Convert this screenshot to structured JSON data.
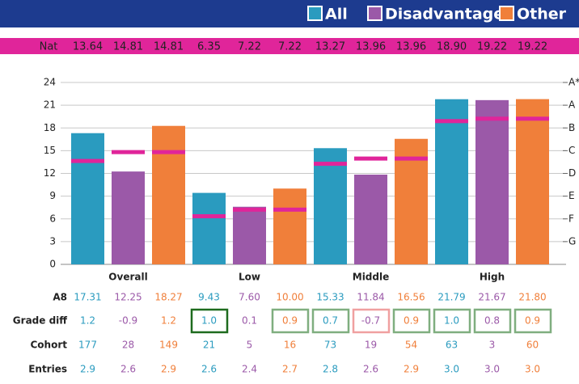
{
  "chart_data": {
    "type": "bar",
    "categories": [
      "Overall",
      "Low",
      "Middle",
      "High"
    ],
    "ylim": [
      0,
      24
    ],
    "yticks": [
      0,
      3,
      6,
      9,
      12,
      15,
      18,
      21,
      24
    ],
    "y2ticks": [
      {
        "value": 3,
        "label": "G"
      },
      {
        "value": 6,
        "label": "F"
      },
      {
        "value": 9,
        "label": "E"
      },
      {
        "value": 12,
        "label": "D"
      },
      {
        "value": 15,
        "label": "C"
      },
      {
        "value": 18,
        "label": "B"
      },
      {
        "value": 21,
        "label": "A"
      },
      {
        "value": 24,
        "label": "A*"
      }
    ],
    "grid": true,
    "nat_color": "#e0259a",
    "row_labels": {
      "nat": "Nat",
      "a8": "A8",
      "grade_diff": "Grade diff",
      "cohort": "Cohort",
      "entries": "Entries"
    },
    "series": [
      {
        "name": "All",
        "color": "#2a9bbf",
        "values": [
          17.31,
          9.43,
          15.33,
          21.79
        ],
        "value_labels": [
          "17.31",
          "9.43",
          "15.33",
          "21.79"
        ],
        "nat": [
          13.64,
          6.35,
          13.27,
          18.9
        ],
        "nat_labels": [
          "13.64",
          "6.35",
          "13.27",
          "18.90"
        ],
        "grade_diff": [
          "1.2",
          "1.0",
          "0.7",
          "1.0"
        ],
        "grade_diff_boxes": [
          null,
          "#1e6b1e",
          "#7fae7f",
          "#7fae7f"
        ],
        "cohort": [
          "177",
          "21",
          "73",
          "63"
        ],
        "entries": [
          "2.9",
          "2.6",
          "2.8",
          "3.0"
        ]
      },
      {
        "name": "Disadvantaged",
        "color": "#9b59a8",
        "values": [
          12.25,
          7.6,
          11.84,
          21.67
        ],
        "value_labels": [
          "12.25",
          "7.60",
          "11.84",
          "21.67"
        ],
        "nat": [
          14.81,
          7.22,
          13.96,
          19.22
        ],
        "nat_labels": [
          "14.81",
          "7.22",
          "13.96",
          "19.22"
        ],
        "grade_diff": [
          "-0.9",
          "0.1",
          "-0.7",
          "0.8"
        ],
        "grade_diff_boxes": [
          null,
          null,
          "#f0a0a0",
          "#7fae7f"
        ],
        "cohort": [
          "28",
          "5",
          "19",
          "3"
        ],
        "entries": [
          "2.6",
          "2.4",
          "2.6",
          "3.0"
        ]
      },
      {
        "name": "Other",
        "color": "#f07f3a",
        "values": [
          18.27,
          10.0,
          16.56,
          21.8
        ],
        "value_labels": [
          "18.27",
          "10.00",
          "16.56",
          "21.80"
        ],
        "nat": [
          14.81,
          7.22,
          13.96,
          19.22
        ],
        "nat_labels": [
          "14.81",
          "7.22",
          "13.96",
          "19.22"
        ],
        "grade_diff": [
          "1.2",
          "0.9",
          "0.9",
          "0.9"
        ],
        "grade_diff_boxes": [
          null,
          "#7fae7f",
          "#7fae7f",
          "#7fae7f"
        ],
        "cohort": [
          "149",
          "16",
          "54",
          "60"
        ],
        "entries": [
          "2.9",
          "2.7",
          "2.9",
          "3.0"
        ]
      }
    ]
  }
}
